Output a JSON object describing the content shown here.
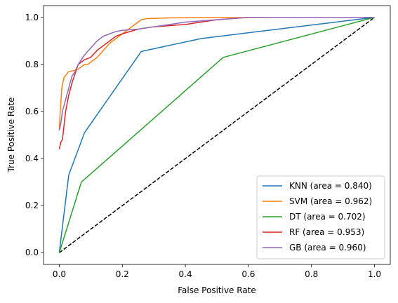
{
  "chart_data": {
    "type": "line",
    "title": "",
    "xlabel": "False Positive Rate",
    "ylabel": "True Positive Rate",
    "xlim": [
      -0.05,
      1.05
    ],
    "ylim": [
      -0.05,
      1.05
    ],
    "xticks": [
      "0.0",
      "0.2",
      "0.4",
      "0.6",
      "0.8",
      "1.0"
    ],
    "yticks": [
      "0.0",
      "0.2",
      "0.4",
      "0.6",
      "0.8",
      "1.0"
    ],
    "grid": false,
    "legend_position": "lower-right",
    "reference_line": {
      "style": "dashed",
      "color": "#000000",
      "x": [
        0,
        1
      ],
      "y": [
        0,
        1
      ]
    },
    "series": [
      {
        "name": "KNN (area = 0.840)",
        "color": "#1f77b4",
        "x": [
          0.0,
          0.03,
          0.08,
          0.26,
          0.45,
          1.0
        ],
        "y": [
          0.0,
          0.33,
          0.51,
          0.855,
          0.91,
          1.0
        ]
      },
      {
        "name": "SVM (area = 0.962)",
        "color": "#ff7f0e",
        "x": [
          0.0,
          0.003,
          0.008,
          0.015,
          0.03,
          0.05,
          0.06,
          0.07,
          0.08,
          0.09,
          0.1,
          0.12,
          0.14,
          0.16,
          0.18,
          0.2,
          0.22,
          0.24,
          0.26,
          0.28,
          0.35,
          0.5,
          0.7,
          1.0
        ],
        "y": [
          0.52,
          0.6,
          0.7,
          0.745,
          0.77,
          0.775,
          0.78,
          0.79,
          0.8,
          0.8,
          0.81,
          0.83,
          0.86,
          0.89,
          0.91,
          0.93,
          0.95,
          0.97,
          0.99,
          0.995,
          0.998,
          0.999,
          1.0,
          1.0
        ]
      },
      {
        "name": "DT (area = 0.702)",
        "color": "#2ca02c",
        "x": [
          0.0,
          0.07,
          0.52,
          1.0
        ],
        "y": [
          0.0,
          0.3,
          0.83,
          1.0
        ]
      },
      {
        "name": "RF (area = 0.953)",
        "color": "#d62728",
        "x": [
          0.0,
          0.005,
          0.01,
          0.02,
          0.03,
          0.04,
          0.05,
          0.06,
          0.08,
          0.1,
          0.12,
          0.14,
          0.16,
          0.18,
          0.2,
          0.25,
          0.3,
          0.4,
          0.5,
          0.6,
          0.8,
          1.0
        ],
        "y": [
          0.44,
          0.47,
          0.48,
          0.6,
          0.67,
          0.72,
          0.76,
          0.8,
          0.82,
          0.83,
          0.86,
          0.88,
          0.9,
          0.92,
          0.93,
          0.95,
          0.96,
          0.97,
          0.99,
          1.0,
          1.0,
          1.0
        ]
      },
      {
        "name": "GB (area = 0.960)",
        "color": "#9467bd",
        "x": [
          0.0,
          0.005,
          0.01,
          0.02,
          0.03,
          0.04,
          0.05,
          0.06,
          0.07,
          0.08,
          0.1,
          0.12,
          0.13,
          0.14,
          0.16,
          0.18,
          0.2,
          0.25,
          0.3,
          0.35,
          0.4,
          0.5,
          0.6,
          0.8,
          1.0
        ],
        "y": [
          0.52,
          0.55,
          0.6,
          0.65,
          0.7,
          0.75,
          0.77,
          0.8,
          0.82,
          0.84,
          0.87,
          0.9,
          0.91,
          0.92,
          0.93,
          0.94,
          0.945,
          0.95,
          0.96,
          0.97,
          0.98,
          0.99,
          1.0,
          1.0,
          1.0
        ]
      }
    ]
  }
}
